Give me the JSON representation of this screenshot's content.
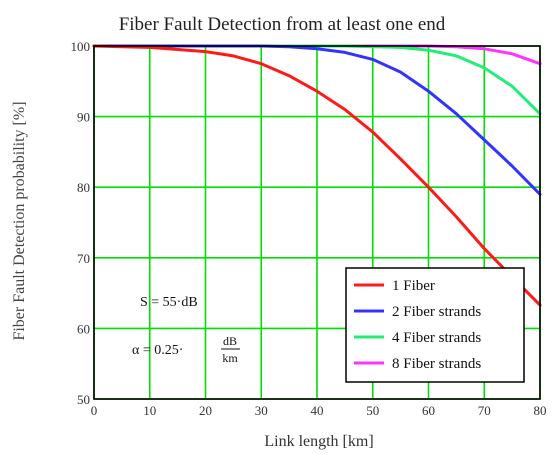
{
  "chart_data": {
    "type": "line",
    "title": "Fiber Fault Detection from at least one end",
    "xlabel": "Link length [km]",
    "ylabel": "Fiber Fault Detection probability [%]",
    "xlim": [
      0,
      80
    ],
    "ylim": [
      50,
      100
    ],
    "x_ticks": [
      0,
      10,
      20,
      30,
      40,
      50,
      60,
      70,
      80
    ],
    "y_ticks": [
      50,
      60,
      70,
      80,
      90,
      100
    ],
    "grid": true,
    "grid_color": "#00e000",
    "legend_position": "bottom-right",
    "series": [
      {
        "name": "1 Fiber",
        "color": "#ff1a1a",
        "x": [
          0,
          10,
          20,
          25,
          30,
          35,
          40,
          45,
          50,
          55,
          60,
          65,
          70,
          75,
          80
        ],
        "y": [
          100,
          99.8,
          99.2,
          98.6,
          97.5,
          95.8,
          93.6,
          91.0,
          87.8,
          84.0,
          80.0,
          75.8,
          71.3,
          67.3,
          63.3
        ]
      },
      {
        "name": "2 Fiber strands",
        "color": "#3333ff",
        "x": [
          0,
          30,
          35,
          40,
          45,
          50,
          55,
          60,
          65,
          70,
          75,
          80
        ],
        "y": [
          100,
          100,
          99.9,
          99.6,
          99.1,
          98.1,
          96.3,
          93.6,
          90.4,
          86.7,
          83.0,
          79.0
        ]
      },
      {
        "name": "4 Fiber strands",
        "color": "#22ee77",
        "x": [
          0,
          45,
          50,
          55,
          60,
          65,
          70,
          75,
          80
        ],
        "y": [
          100,
          100,
          99.9,
          99.8,
          99.4,
          98.6,
          96.9,
          94.3,
          90.4
        ]
      },
      {
        "name": "8 Fiber strands",
        "color": "#ff33ff",
        "x": [
          0,
          60,
          65,
          70,
          75,
          80
        ],
        "y": [
          100,
          100,
          99.9,
          99.6,
          98.9,
          97.5
        ]
      }
    ],
    "annotations": {
      "s_label": "S = 55·dB",
      "alpha_prefix": "α = 0.25·",
      "alpha_num": "dB",
      "alpha_den": "km"
    }
  }
}
